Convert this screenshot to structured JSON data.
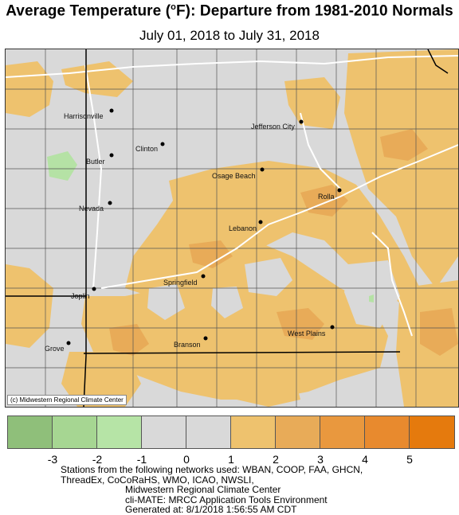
{
  "title": {
    "main": "Average Temperature (",
    "degree": "o",
    "unit": "F): Departure from 1981-2010 Normals"
  },
  "subtitle": "July 01, 2018 to July 31, 2018",
  "map": {
    "copyright": "(c) Midwestern Regional Climate Center",
    "cities": [
      {
        "name": "Harrisonville"
      },
      {
        "name": "Jefferson City"
      },
      {
        "name": "Clinton"
      },
      {
        "name": "Butler"
      },
      {
        "name": "Osage Beach"
      },
      {
        "name": "Rolla"
      },
      {
        "name": "Nevada"
      },
      {
        "name": "Lebanon"
      },
      {
        "name": "Springfield"
      },
      {
        "name": "Joplin"
      },
      {
        "name": "West Plains"
      },
      {
        "name": "Branson"
      },
      {
        "name": "Grove"
      }
    ],
    "colors": {
      "background": "#d9d9d9",
      "warm1": "#eec26e",
      "warm2": "#e8ab58",
      "cool1": "#b5e2a5",
      "roads": "#ffffff",
      "state_border": "#000000",
      "county_lines": "#444444"
    }
  },
  "legend": {
    "ticks": [
      "-3",
      "-2",
      "-1",
      "0",
      "1",
      "2",
      "3",
      "4",
      "5"
    ],
    "colors": [
      "#8fbf7a",
      "#a6d692",
      "#b6e4a6",
      "#d9d9d9",
      "#d9d9d9",
      "#eec26e",
      "#e8ab58",
      "#e9983e",
      "#e88a2e",
      "#e57a0d"
    ]
  },
  "notes": {
    "line1": "Stations from the following networks used: WBAN, COOP, FAA, GHCN,",
    "line2": "ThreadEx, CoCoRaHS, WMO, ICAO, NWSLI,",
    "line3": "Midwestern Regional Climate Center",
    "line4": "cli-MATE: MRCC Application Tools Environment",
    "line5": "Generated at: 8/1/2018 1:56:55 AM CDT"
  }
}
